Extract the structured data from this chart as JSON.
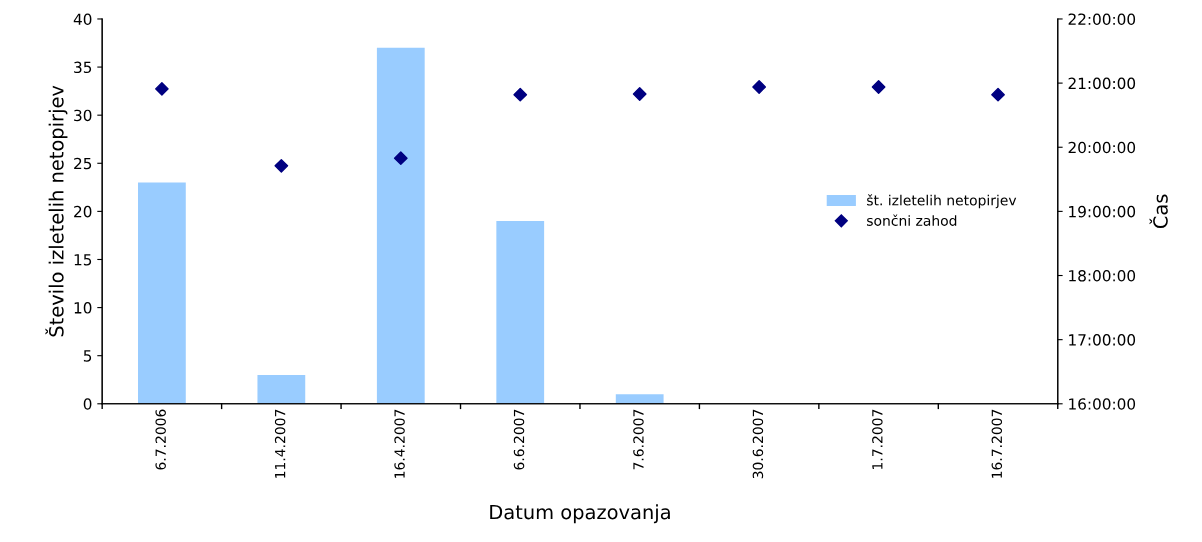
{
  "chart_data": {
    "type": "bar",
    "xlabel": "Datum opazovanja",
    "ylabel": "Število izletelih netopirjev",
    "y2label": "Čas",
    "categories": [
      "6.7.2006",
      "11.4.2007",
      "16.4.2007",
      "6.6.2007",
      "7.6.2007",
      "30.6.2007",
      "1.7.2007",
      "16.7.2007"
    ],
    "series": [
      {
        "name": "št. izletelih netopirjev",
        "color": "#99ccff",
        "values": [
          23,
          3,
          37,
          19,
          1,
          0,
          0,
          0
        ]
      },
      {
        "name": "sončni zahod",
        "type": "scatter",
        "axis": "y2",
        "color": "#000080",
        "marker": "diamond",
        "values": [
          20.91,
          19.71,
          19.83,
          20.82,
          20.83,
          20.94,
          20.94,
          20.82
        ]
      }
    ],
    "ylim": [
      0,
      40
    ],
    "yticks": [
      0,
      5,
      10,
      15,
      20,
      25,
      30,
      35,
      40
    ],
    "y2lim": [
      16,
      22
    ],
    "y2ticks": [
      {
        "value": 16,
        "label": "16:00:00"
      },
      {
        "value": 17,
        "label": "17:00:00"
      },
      {
        "value": 18,
        "label": "18:00:00"
      },
      {
        "value": 19,
        "label": "19:00:00"
      },
      {
        "value": 20,
        "label": "20:00:00"
      },
      {
        "value": 21,
        "label": "21:00:00"
      },
      {
        "value": 22,
        "label": "22:00:00"
      }
    ],
    "grid": false,
    "legend": "center right"
  }
}
